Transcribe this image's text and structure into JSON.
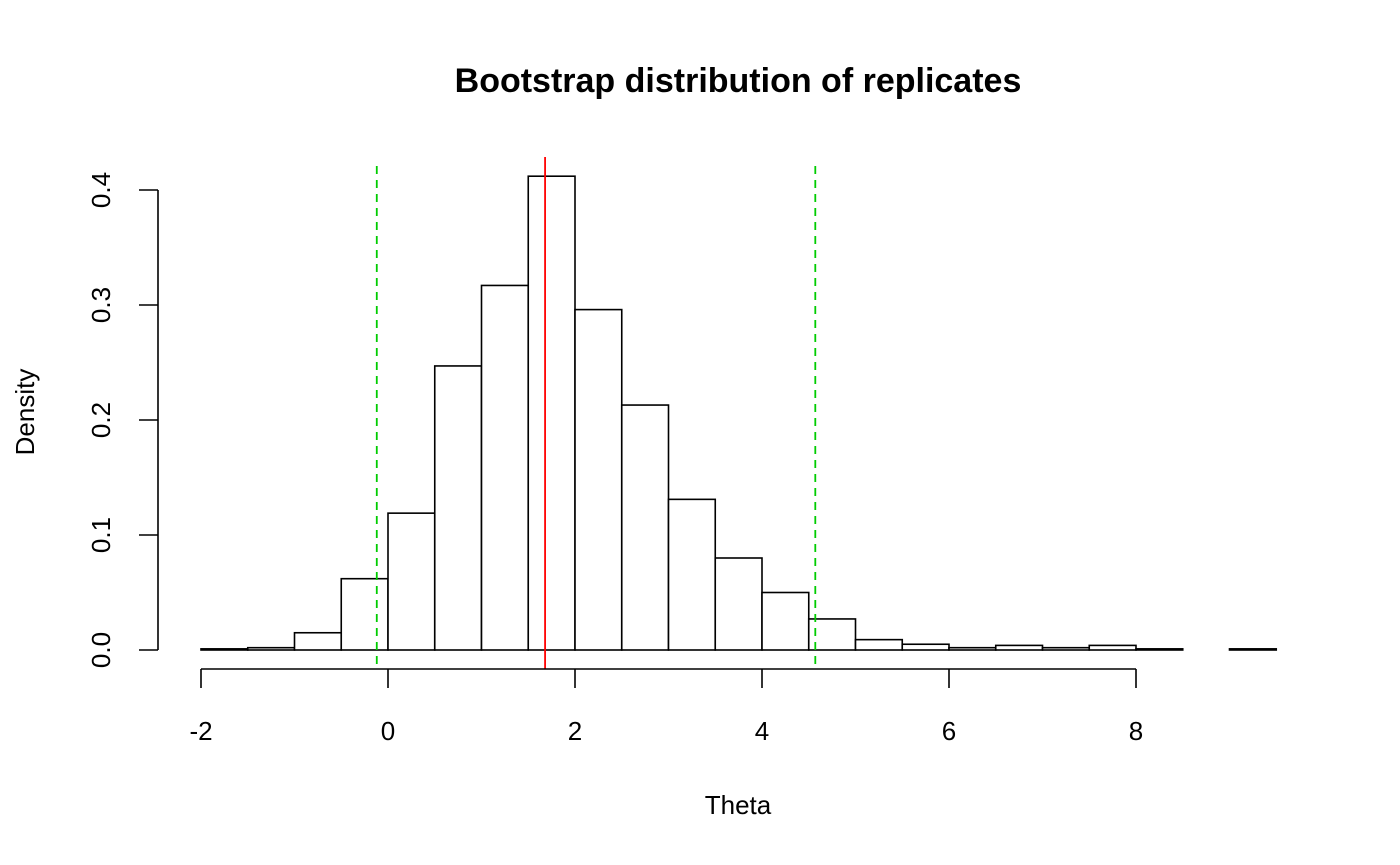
{
  "chart_data": {
    "type": "bar",
    "title": "Bootstrap distribution of replicates",
    "xlabel": "Theta",
    "ylabel": "Density",
    "xlim": [
      -2,
      9.5
    ],
    "ylim": [
      0,
      0.42
    ],
    "x_ticks": [
      -2,
      0,
      2,
      4,
      6,
      8
    ],
    "x_tick_labels": [
      "-2",
      "0",
      "2",
      "4",
      "6",
      "8"
    ],
    "y_ticks": [
      0.0,
      0.1,
      0.2,
      0.3,
      0.4
    ],
    "y_tick_labels": [
      "0.0",
      "0.1",
      "0.2",
      "0.3",
      "0.4"
    ],
    "grid": false,
    "bin_edges": [
      -2,
      -1.5,
      -1,
      -0.5,
      0,
      0.5,
      1,
      1.5,
      2,
      2.5,
      3,
      3.5,
      4,
      4.5,
      5,
      5.5,
      6,
      6.5,
      7,
      7.5,
      8,
      8.5,
      9,
      9.5
    ],
    "values": [
      0.001,
      0.002,
      0.015,
      0.062,
      0.119,
      0.247,
      0.317,
      0.412,
      0.296,
      0.213,
      0.131,
      0.08,
      0.05,
      0.027,
      0.009,
      0.005,
      0.002,
      0.004,
      0.002,
      0.004,
      0.001,
      0.0,
      0.001
    ],
    "reference_lines": [
      {
        "x": -0.12,
        "color": "#00cc00",
        "style": "dashed"
      },
      {
        "x": 1.68,
        "color": "#ff0000",
        "style": "solid"
      },
      {
        "x": 4.57,
        "color": "#00cc00",
        "style": "dashed"
      }
    ],
    "bar_fill": "#ffffff",
    "bar_stroke": "#000000"
  }
}
